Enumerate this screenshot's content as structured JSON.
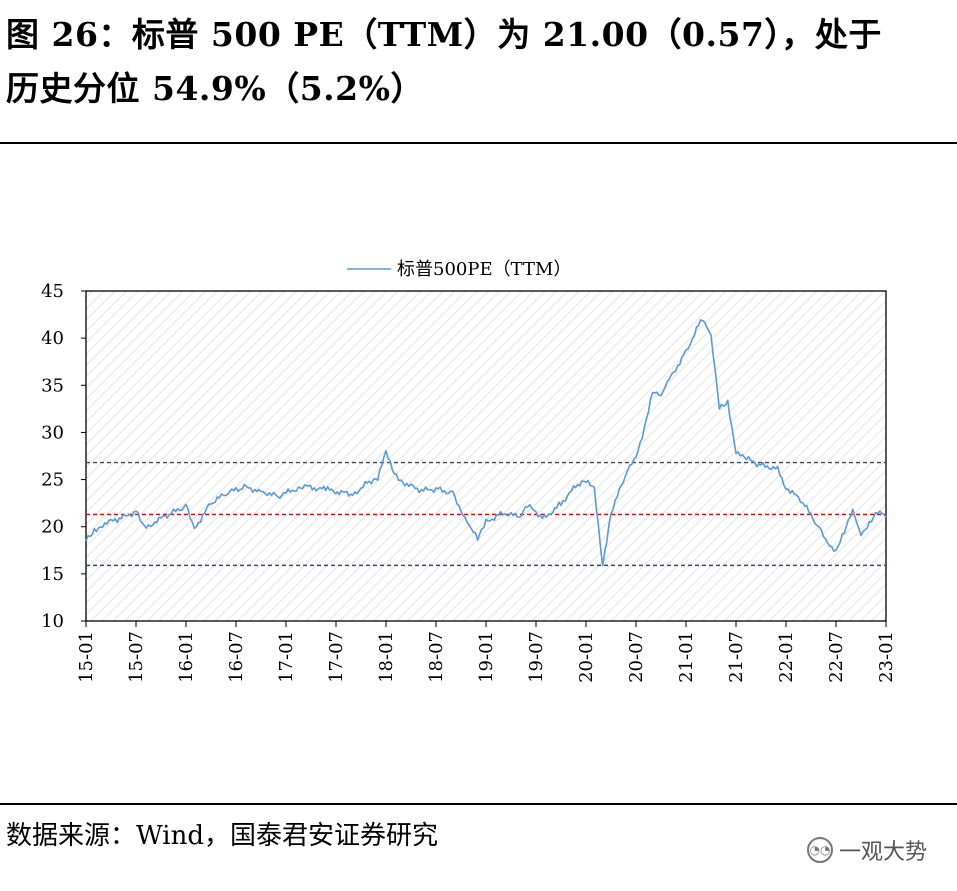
{
  "header": {
    "title_line1": "图 26：标普 500 PE（TTM）为 21.00（0.57），处于",
    "title_line2": "历史分位 54.9%（5.2%）"
  },
  "footer": {
    "source": "数据来源：Wind，国泰君安证券研究",
    "watermark": "一观大势"
  },
  "colors": {
    "series": "#5b9bd5",
    "median": "#e00000",
    "band": "#3b4a6b"
  },
  "chart_data": {
    "type": "line",
    "title": "",
    "xlabel": "",
    "ylabel": "",
    "ylim": [
      10,
      45
    ],
    "yticks": [
      10,
      15,
      20,
      25,
      30,
      35,
      40,
      45
    ],
    "xticks": [
      "15-01",
      "15-07",
      "16-01",
      "16-07",
      "17-01",
      "17-07",
      "18-01",
      "18-07",
      "19-01",
      "19-07",
      "20-01",
      "20-07",
      "21-01",
      "21-07",
      "22-01",
      "22-07",
      "23-01"
    ],
    "legend": {
      "position": "top-center",
      "label": "标普500PE（TTM）"
    },
    "reference_lines": [
      {
        "label": "",
        "value": 26.8,
        "style": "dashed",
        "color": "#3b4a6b"
      },
      {
        "label": "",
        "value": 21.3,
        "style": "dashed",
        "color": "#e00000"
      },
      {
        "label": "",
        "value": 15.9,
        "style": "dashed",
        "color": "#3b4a6b"
      }
    ],
    "series": [
      {
        "name": "标普500PE（TTM）",
        "x": [
          "2015-01",
          "2015-02",
          "2015-03",
          "2015-05",
          "2015-07",
          "2015-08",
          "2015-09",
          "2015-11",
          "2016-01",
          "2016-02",
          "2016-04",
          "2016-06",
          "2016-08",
          "2016-10",
          "2016-12",
          "2017-03",
          "2017-06",
          "2017-09",
          "2017-11",
          "2017-12",
          "2018-01",
          "2018-02",
          "2018-03",
          "2018-05",
          "2018-07",
          "2018-09",
          "2018-10",
          "2018-11",
          "2018-12",
          "2019-01",
          "2019-03",
          "2019-05",
          "2019-06",
          "2019-08",
          "2019-10",
          "2019-12",
          "2020-01",
          "2020-02",
          "2020-03",
          "2020-04",
          "2020-06",
          "2020-07",
          "2020-08",
          "2020-09",
          "2020-10",
          "2020-11",
          "2021-01",
          "2021-03",
          "2021-04",
          "2021-05",
          "2021-06",
          "2021-07",
          "2021-08",
          "2021-10",
          "2021-12",
          "2022-01",
          "2022-03",
          "2022-05",
          "2022-06",
          "2022-07",
          "2022-08",
          "2022-09",
          "2022-10",
          "2022-11",
          "2022-12",
          "2023-01"
        ],
        "values": [
          18.5,
          19.6,
          20.3,
          20.8,
          21.6,
          20.0,
          20.4,
          21.3,
          22.2,
          19.8,
          22.5,
          23.6,
          24.2,
          23.8,
          23.2,
          24.3,
          23.9,
          23.4,
          24.8,
          25.2,
          27.8,
          25.6,
          24.8,
          23.8,
          24.0,
          23.6,
          21.8,
          20.2,
          18.6,
          20.5,
          21.5,
          21.0,
          22.2,
          20.9,
          22.5,
          24.5,
          24.8,
          23.9,
          16.0,
          21.5,
          26.0,
          27.2,
          30.5,
          34.5,
          33.8,
          35.6,
          38.6,
          42.2,
          40.2,
          32.5,
          33.2,
          28.1,
          27.3,
          26.5,
          26.2,
          24.2,
          22.6,
          19.8,
          18.2,
          17.6,
          19.5,
          21.6,
          19.1,
          20.5,
          21.7,
          21.0
        ]
      }
    ]
  }
}
